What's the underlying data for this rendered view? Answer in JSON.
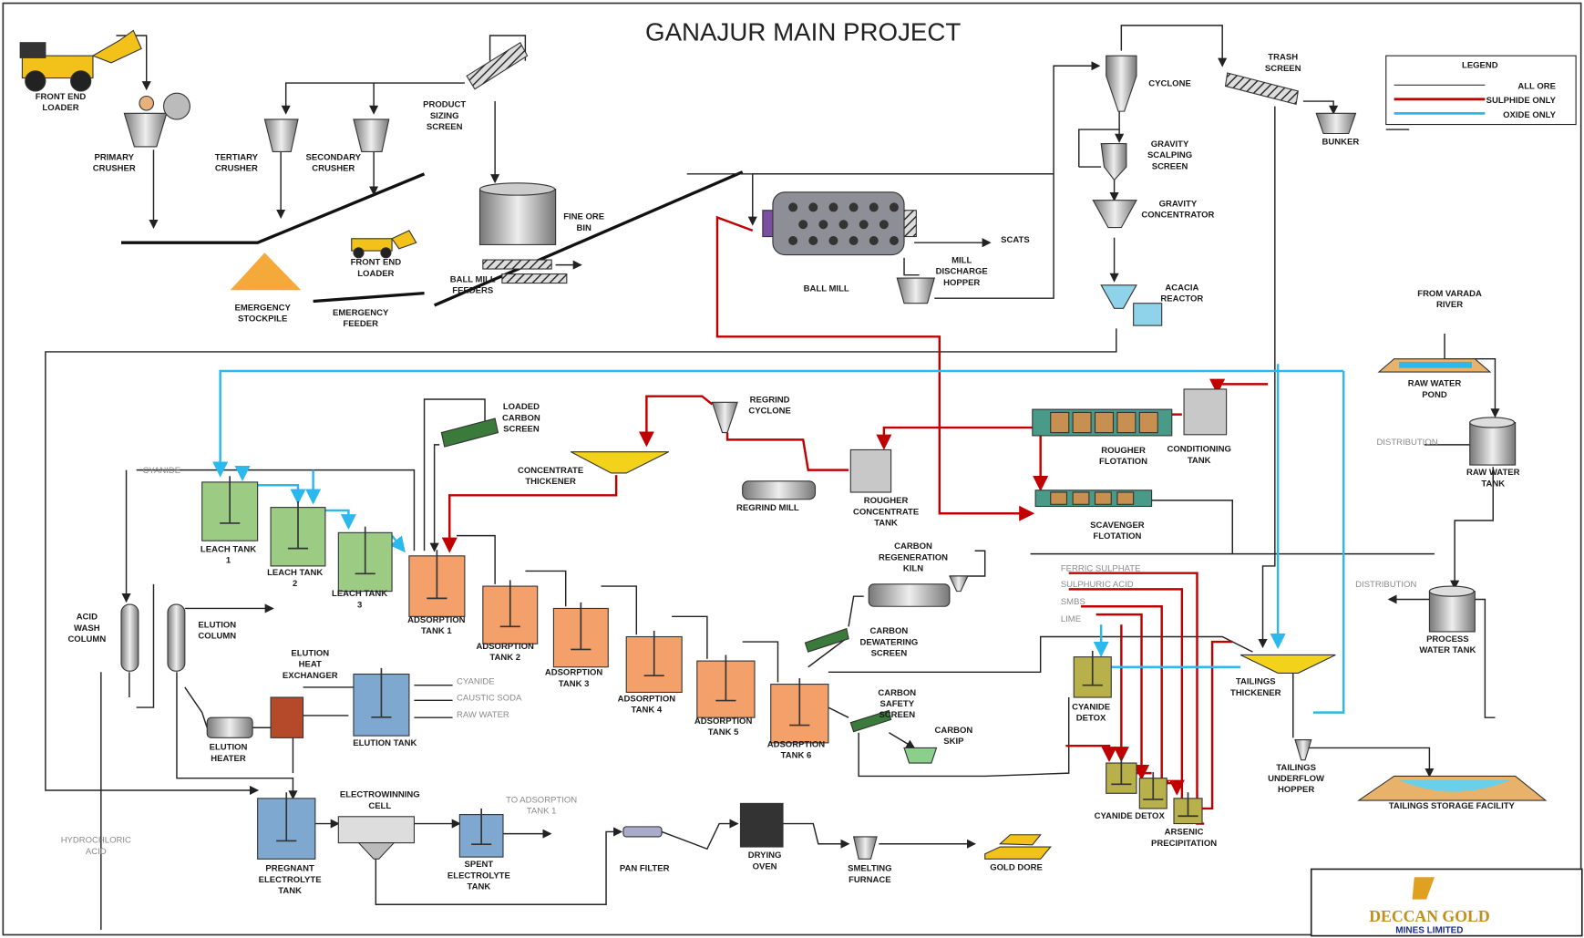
{
  "title": "GANAJUR MAIN PROJECT",
  "legend": {
    "title": "LEGEND",
    "items": [
      "ALL ORE",
      "SULPHIDE ONLY",
      "OXIDE ONLY"
    ]
  },
  "labels": [
    {
      "lines": [
        "FRONT END",
        "LOADER"
      ]
    },
    {
      "lines": [
        "PRIMARY",
        "CRUSHER"
      ]
    },
    {
      "lines": [
        "TERTIARY",
        "CRUSHER"
      ]
    },
    {
      "lines": [
        "SECONDARY",
        "CRUSHER"
      ]
    },
    {
      "lines": [
        "PRODUCT",
        "SIZING",
        "SCREEN"
      ]
    },
    {
      "lines": [
        "FINE ORE",
        "BIN"
      ]
    },
    {
      "lines": [
        "FRONT END",
        "LOADER"
      ]
    },
    {
      "lines": [
        "BALL MILL",
        "FEEDERS"
      ]
    },
    {
      "lines": [
        "EMERGENCY",
        "STOCKPILE"
      ]
    },
    {
      "lines": [
        "EMERGENCY",
        "FEEDER"
      ]
    },
    {
      "lines": [
        "BALL MILL"
      ]
    },
    {
      "lines": [
        "SCATS"
      ]
    },
    {
      "lines": [
        "MILL",
        "DISCHARGE",
        "HOPPER"
      ]
    },
    {
      "lines": [
        "CYCLONE"
      ]
    },
    {
      "lines": [
        "GRAVITY",
        "SCALPING",
        "SCREEN"
      ]
    },
    {
      "lines": [
        "GRAVITY",
        "CONCENTRATOR"
      ]
    },
    {
      "lines": [
        "ACACIA",
        "REACTOR"
      ]
    },
    {
      "lines": [
        "TRASH",
        "SCREEN"
      ]
    },
    {
      "lines": [
        "BUNKER"
      ]
    },
    {
      "lines": [
        "FROM VARADA",
        "RIVER"
      ]
    },
    {
      "lines": [
        "RAW WATER",
        "POND"
      ]
    },
    {
      "lines": [
        "DISTRIBUTION"
      ]
    },
    {
      "lines": [
        "RAW WATER",
        "TANK"
      ]
    },
    {
      "lines": [
        "DISTRIBUTION"
      ]
    },
    {
      "lines": [
        "PROCESS",
        "WATER TANK"
      ]
    },
    {
      "lines": [
        "LOADED",
        "CARBON",
        "SCREEN"
      ]
    },
    {
      "lines": [
        "REGRIND",
        "CYCLONE"
      ]
    },
    {
      "lines": [
        "CONCENTRATE",
        "THICKENER"
      ]
    },
    {
      "lines": [
        "REGRIND MILL"
      ]
    },
    {
      "lines": [
        "ROUGHER",
        "CONCENTRATE",
        "TANK"
      ]
    },
    {
      "lines": [
        "ROUGHER",
        "FLOTATION"
      ]
    },
    {
      "lines": [
        "CONDITIONING",
        "TANK"
      ]
    },
    {
      "lines": [
        "SCAVENGER",
        "FLOTATION"
      ]
    },
    {
      "lines": [
        "CYANIDE"
      ]
    },
    {
      "lines": [
        "LEACH TANK",
        "1"
      ]
    },
    {
      "lines": [
        "LEACH TANK",
        "2"
      ]
    },
    {
      "lines": [
        "LEACH TANK",
        "3"
      ]
    },
    {
      "lines": [
        "ADSORPTION",
        "TANK 1"
      ]
    },
    {
      "lines": [
        "ADSORPTION",
        "TANK 2"
      ]
    },
    {
      "lines": [
        "ADSORPTION",
        "TANK 3"
      ]
    },
    {
      "lines": [
        "ADSORPTION",
        "TANK 4"
      ]
    },
    {
      "lines": [
        "ADSORPTION",
        "TANK 5"
      ]
    },
    {
      "lines": [
        "ADSORPTION",
        "TANK 6"
      ]
    },
    {
      "lines": [
        "CARBON",
        "REGENERATION",
        "KILN"
      ]
    },
    {
      "lines": [
        "CARBON",
        "DEWATERING",
        "SCREEN"
      ]
    },
    {
      "lines": [
        "CARBON",
        "SAFETY",
        "SCREEN"
      ]
    },
    {
      "lines": [
        "CARBON",
        "SKIP"
      ]
    },
    {
      "lines": [
        "ACID",
        "WASH",
        "COLUMN"
      ]
    },
    {
      "lines": [
        "ELUTION",
        "COLUMN"
      ]
    },
    {
      "lines": [
        "ELUTION",
        "HEAT",
        "EXCHANGER"
      ]
    },
    {
      "lines": [
        "ELUTION TANK"
      ]
    },
    {
      "lines": [
        "CYANIDE"
      ]
    },
    {
      "lines": [
        "CAUSTIC SODA"
      ]
    },
    {
      "lines": [
        "RAW WATER"
      ]
    },
    {
      "lines": [
        "ELUTION",
        "HEATER"
      ]
    },
    {
      "lines": [
        "HYDROCHLORIC",
        "ACID"
      ]
    },
    {
      "lines": [
        "ELECTROWINNING",
        "CELL"
      ]
    },
    {
      "lines": [
        "TO ADSORPTION",
        "TANK 1"
      ]
    },
    {
      "lines": [
        "PREGNANT",
        "ELECTROLYTE",
        "TANK"
      ]
    },
    {
      "lines": [
        "SPENT",
        "ELECTROLYTE",
        "TANK"
      ]
    },
    {
      "lines": [
        "PAN FILTER"
      ]
    },
    {
      "lines": [
        "DRYING",
        "OVEN"
      ]
    },
    {
      "lines": [
        "SMELTING",
        "FURNACE"
      ]
    },
    {
      "lines": [
        "GOLD DORE"
      ]
    },
    {
      "lines": [
        "FERRIC SULPHATE"
      ]
    },
    {
      "lines": [
        "SULPHURIC ACID"
      ]
    },
    {
      "lines": [
        "SMBS"
      ]
    },
    {
      "lines": [
        "LIME"
      ]
    },
    {
      "lines": [
        "CYANIDE",
        "DETOX"
      ]
    },
    {
      "lines": [
        "CYANIDE DETOX"
      ]
    },
    {
      "lines": [
        "ARSENIC",
        "PRECIPITATION"
      ]
    },
    {
      "lines": [
        "TAILINGS",
        "THICKENER"
      ]
    },
    {
      "lines": [
        "TAILINGS",
        "UNDERFLOW",
        "HOPPER"
      ]
    },
    {
      "lines": [
        "TAILINGS STORAGE FACILITY"
      ]
    }
  ],
  "logo": {
    "name": "DECCAN GOLD",
    "subtitle": "MINES LIMITED"
  }
}
